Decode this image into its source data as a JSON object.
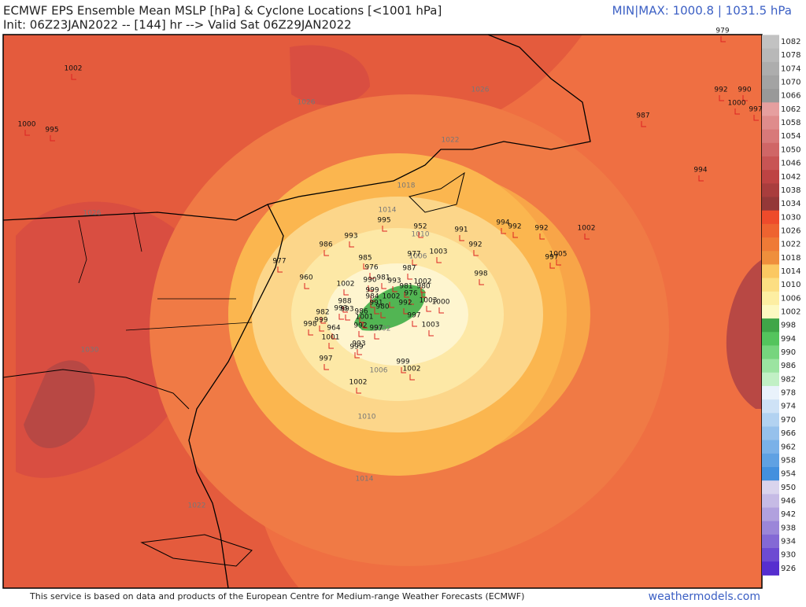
{
  "header": {
    "title": "ECMWF EPS Ensemble Mean MSLP [hPa] & Cyclone Locations [<1001 hPa]",
    "init": "Init: 06Z23JAN2022 -- [144] hr --> Valid Sat 06Z29JAN2022",
    "minmax": "MIN|MAX: 1000.8 | 1031.5 hPa"
  },
  "footer": {
    "disclaimer": "This service is based on data and products of the European Centre for Medium-range Weather Forecasts (ECMWF)",
    "brand": "weathermodels.com"
  },
  "colorbar": {
    "levels": [
      1082,
      1078,
      1074,
      1070,
      1066,
      1062,
      1058,
      1054,
      1050,
      1046,
      1042,
      1038,
      1034,
      1030,
      1026,
      1022,
      1018,
      1014,
      1010,
      1006,
      1002,
      998,
      994,
      990,
      986,
      982,
      978,
      974,
      970,
      966,
      962,
      958,
      954,
      950,
      946,
      942,
      938,
      934,
      930,
      926
    ]
  },
  "contour_labels": [
    "1026",
    "1026",
    "1022",
    "1018",
    "1014",
    "1010",
    "1006",
    "1026",
    "1030",
    "1022",
    "1002",
    "1006",
    "1010",
    "1014"
  ],
  "cyclones": [
    "1002",
    "1000",
    "995",
    "979",
    "992",
    "990",
    "1000",
    "997",
    "987",
    "994",
    "993",
    "995",
    "952",
    "991",
    "994",
    "992",
    "992",
    "1002",
    "992",
    "997",
    "1005",
    "998",
    "986",
    "977",
    "985",
    "977",
    "1003",
    "976",
    "987",
    "960",
    "981",
    "990",
    "993",
    "1002",
    "1002",
    "999",
    "981",
    "980",
    "984",
    "1002",
    "976",
    "988",
    "991",
    "992",
    "1003",
    "1000",
    "993",
    "980",
    "993",
    "982",
    "986",
    "999",
    "1001",
    "998",
    "964",
    "992",
    "997",
    "997",
    "1003",
    "1001",
    "993",
    "999",
    "997",
    "999",
    "1002",
    "1002"
  ]
}
